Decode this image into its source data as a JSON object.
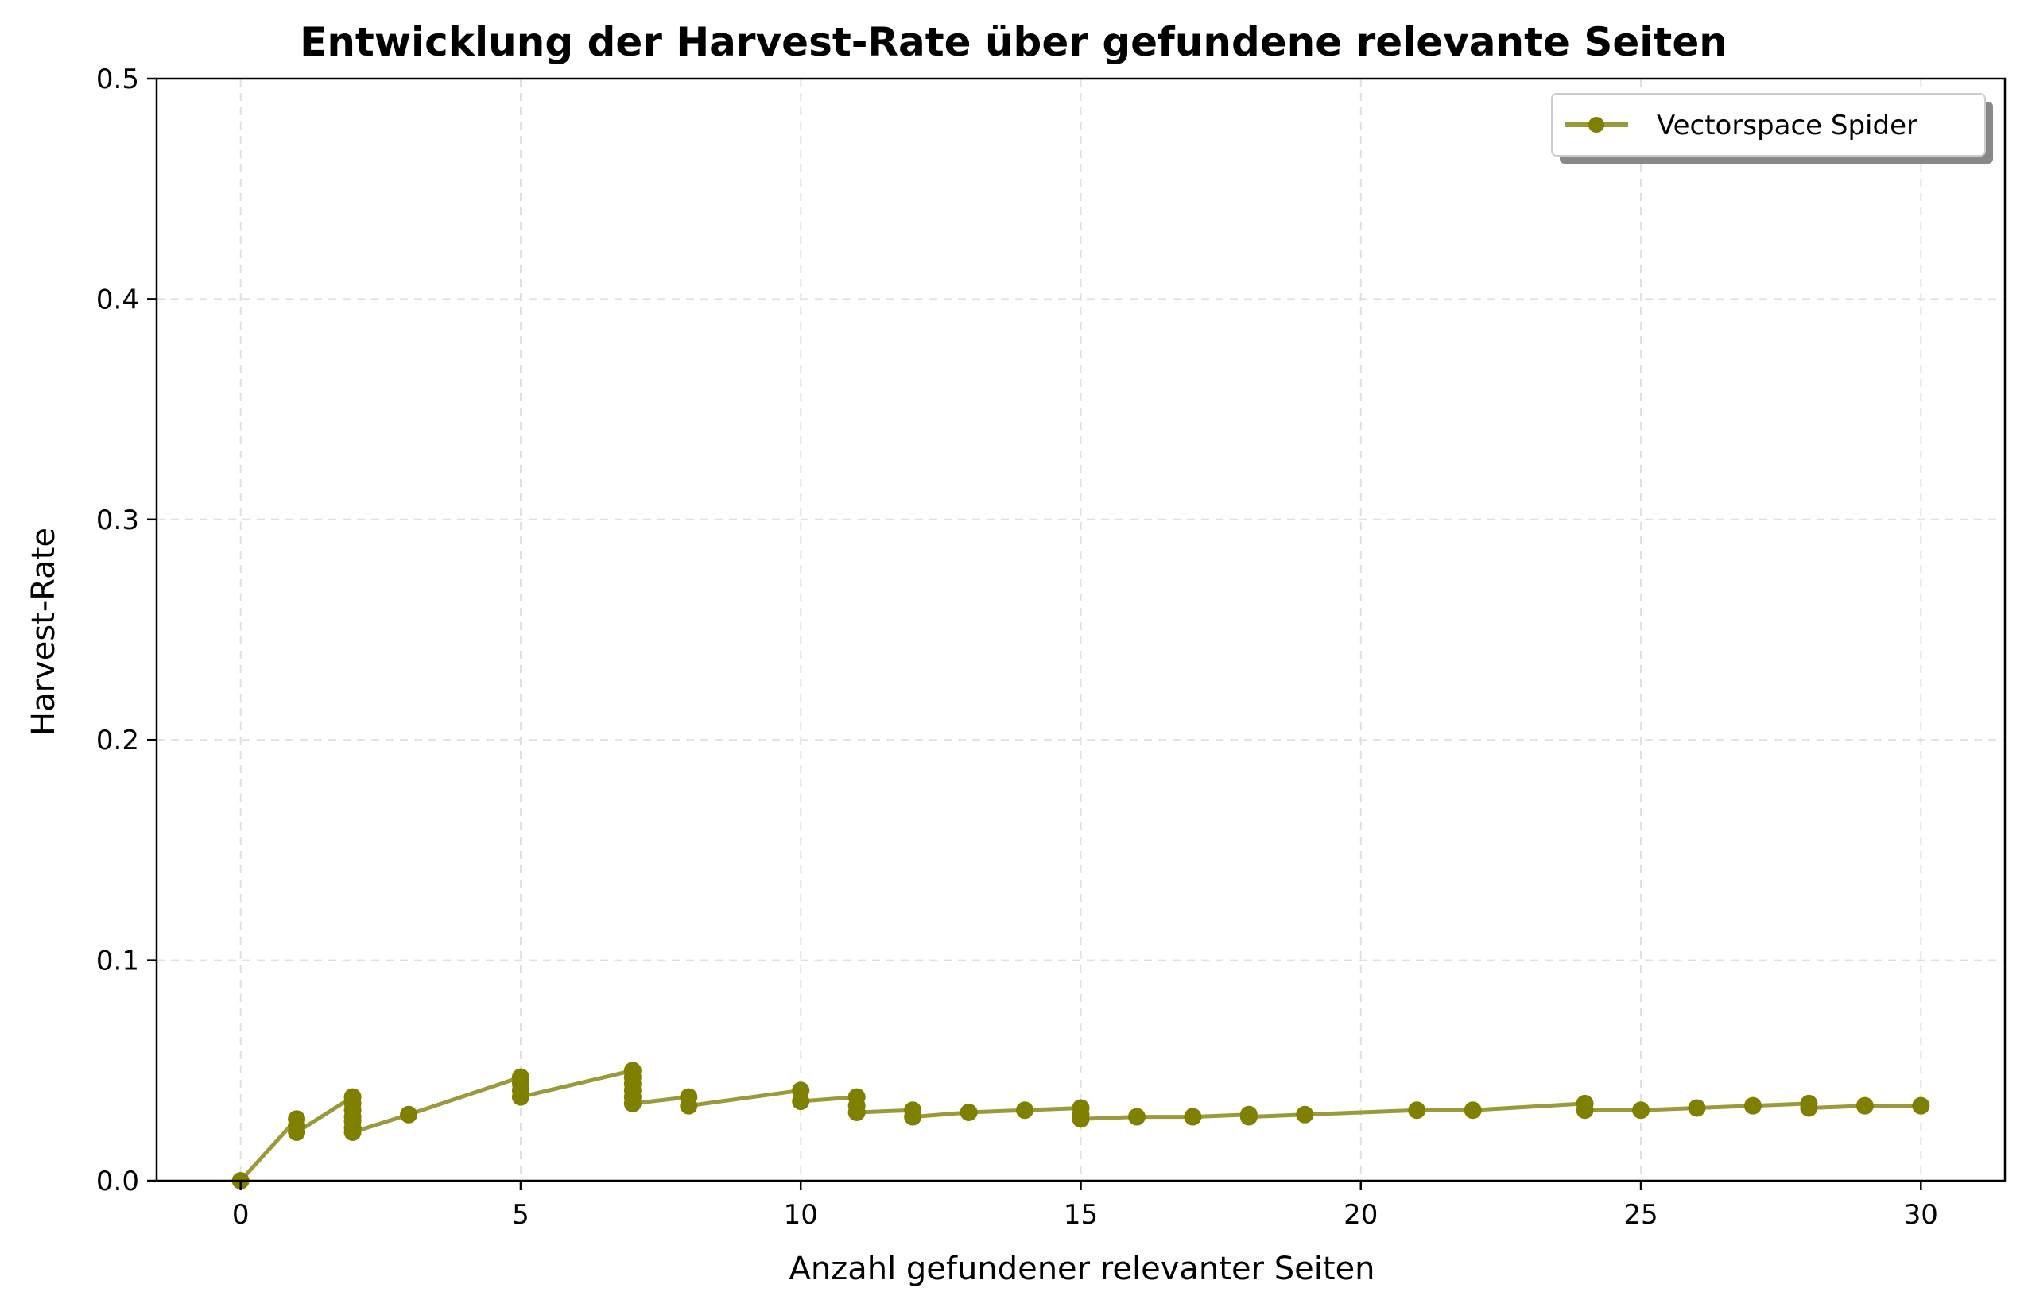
{
  "chart_data": {
    "type": "line",
    "title": "Entwicklung der Harvest-Rate über gefundene relevante Seiten",
    "xlabel": "Anzahl gefundener relevanter Seiten",
    "ylabel": "Harvest-Rate",
    "xlim": [
      -1.5,
      31.5
    ],
    "ylim": [
      0,
      0.5
    ],
    "xticks": [
      0,
      5,
      10,
      15,
      20,
      25,
      30
    ],
    "yticks": [
      0.0,
      0.1,
      0.2,
      0.3,
      0.4,
      0.5
    ],
    "xtick_labels": [
      "0",
      "5",
      "10",
      "15",
      "20",
      "25",
      "30"
    ],
    "ytick_labels": [
      "0.0",
      "0.1",
      "0.2",
      "0.3",
      "0.4",
      "0.5"
    ],
    "grid": true,
    "legend_position": "top-right",
    "series": [
      {
        "name": "Vectorspace Spider",
        "line_color": "#9a9a3a",
        "marker_color": "#808000",
        "points": [
          [
            0,
            0.0
          ],
          [
            1,
            0.028
          ],
          [
            1,
            0.025
          ],
          [
            1,
            0.022
          ],
          [
            2,
            0.038
          ],
          [
            2,
            0.035
          ],
          [
            2,
            0.032
          ],
          [
            2,
            0.029
          ],
          [
            2,
            0.027
          ],
          [
            2,
            0.024
          ],
          [
            2,
            0.022
          ],
          [
            3,
            0.03
          ],
          [
            5,
            0.047
          ],
          [
            5,
            0.044
          ],
          [
            5,
            0.041
          ],
          [
            5,
            0.038
          ],
          [
            7,
            0.05
          ],
          [
            7,
            0.047
          ],
          [
            7,
            0.044
          ],
          [
            7,
            0.041
          ],
          [
            7,
            0.038
          ],
          [
            7,
            0.035
          ],
          [
            8,
            0.038
          ],
          [
            8,
            0.034
          ],
          [
            10,
            0.041
          ],
          [
            10,
            0.036
          ],
          [
            11,
            0.038
          ],
          [
            11,
            0.034
          ],
          [
            11,
            0.031
          ],
          [
            12,
            0.032
          ],
          [
            12,
            0.029
          ],
          [
            13,
            0.031
          ],
          [
            14,
            0.032
          ],
          [
            15,
            0.033
          ],
          [
            15,
            0.03
          ],
          [
            15,
            0.028
          ],
          [
            16,
            0.029
          ],
          [
            17,
            0.029
          ],
          [
            18,
            0.03
          ],
          [
            18,
            0.029
          ],
          [
            19,
            0.03
          ],
          [
            21,
            0.032
          ],
          [
            22,
            0.032
          ],
          [
            24,
            0.035
          ],
          [
            24,
            0.032
          ],
          [
            25,
            0.032
          ],
          [
            26,
            0.033
          ],
          [
            27,
            0.034
          ],
          [
            28,
            0.035
          ],
          [
            28,
            0.033
          ],
          [
            29,
            0.034
          ],
          [
            30,
            0.034
          ]
        ]
      }
    ]
  }
}
